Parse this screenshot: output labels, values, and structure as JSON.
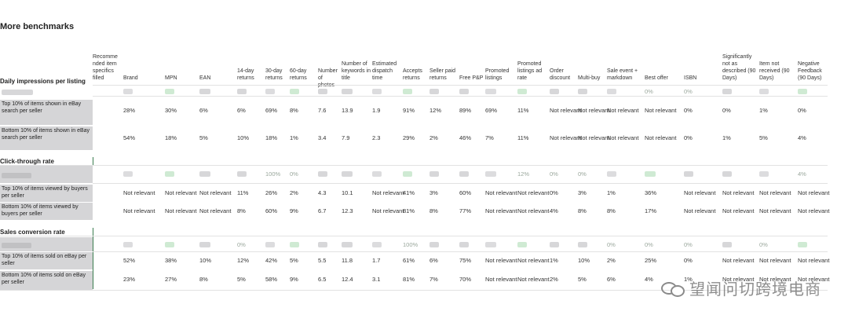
{
  "title": "More benchmarks",
  "columns": [
    "Recommended item specifics filled",
    "Brand",
    "MPN",
    "EAN",
    "14-day returns",
    "30-day returns",
    "60-day returns",
    "Number of photos",
    "Number of keywords in title",
    "Estimated dispatch time",
    "Accepts returns",
    "Seller paid returns",
    "Free P&P",
    "Promoted listings",
    "Promoted listings ad rate",
    "Order discount",
    "Multi-buy",
    "Sale event + markdown",
    "Best offer",
    "ISBN",
    "Significantly not as described (90 Days)",
    "Item not received (90 Days)",
    "Negative Feedback (90 Days)"
  ],
  "column_headers": {
    "c0": "Recomme nded item specifics filled",
    "c1": "Brand",
    "c2": "MPN",
    "c3": "EAN",
    "c4": "14-day returns",
    "c5": "30-day returns",
    "c6": "60-day returns",
    "c7": "Number of photos",
    "c8": "Number of keywords in title",
    "c9": "Estimated dispatch time",
    "c10": "Accepts returns",
    "c11": "Seller paid returns",
    "c12": "Free P&P",
    "c13": "Promoted listings",
    "c14": "Promoted listings ad rate",
    "c15": "Order discount",
    "c16": "Multi-buy",
    "c17": "Sale event + markdown",
    "c18": "Best offer",
    "c19": "ISBN",
    "c20": "Significantly not as described (90 Days)",
    "c21": "Item not received (90 Days)",
    "c22": "Negative Feedback (90 Days)"
  },
  "sections": {
    "impressions": {
      "title": "Daily impressions per listing",
      "blurred_row": {
        "c18": "0%",
        "c19": "0%"
      },
      "rows": [
        {
          "label": "Top 10% of items shown in eBay search per seller",
          "values": [
            "",
            "28%",
            "30%",
            "6%",
            "6%",
            "69%",
            "8%",
            "7.6",
            "13.9",
            "1.9",
            "91%",
            "12%",
            "89%",
            "69%",
            "11%",
            "Not relevant",
            "Not relevant",
            "Not relevant",
            "Not relevant",
            "0%",
            "0%",
            "1%",
            "0%"
          ]
        },
        {
          "label": "Bottom 10% of items shown in eBay search per seller",
          "values": [
            "",
            "54%",
            "18%",
            "5%",
            "10%",
            "18%",
            "1%",
            "3.4",
            "7.9",
            "2.3",
            "29%",
            "2%",
            "46%",
            "7%",
            "11%",
            "Not relevant",
            "Not relevant",
            "Not relevant",
            "Not relevant",
            "0%",
            "1%",
            "5%",
            "4%"
          ]
        }
      ]
    },
    "ctr": {
      "title": "Click-through rate",
      "blurred_row": {
        "c5": "100%",
        "c6": "0%",
        "c14": "12%",
        "c15": "0%",
        "c16": "0%",
        "c22": "4%"
      },
      "rows": [
        {
          "label": "Top 10% of items viewed by buyers per seller",
          "values": [
            "",
            "Not relevant",
            "Not relevant",
            "Not relevant",
            "11%",
            "26%",
            "2%",
            "4.3",
            "10.1",
            "Not relevant",
            "41%",
            "3%",
            "60%",
            "Not relevant",
            "Not relevant",
            "0%",
            "3%",
            "1%",
            "36%",
            "Not relevant",
            "Not relevant",
            "Not relevant",
            "Not relevant"
          ]
        },
        {
          "label": "Bottom 10% of items viewed by buyers per seller",
          "values": [
            "",
            "Not relevant",
            "Not relevant",
            "Not relevant",
            "8%",
            "60%",
            "9%",
            "6.7",
            "12.3",
            "Not relevant",
            "81%",
            "8%",
            "77%",
            "Not relevant",
            "Not relevant",
            "4%",
            "8%",
            "8%",
            "17%",
            "Not relevant",
            "Not relevant",
            "Not relevant",
            "Not relevant"
          ]
        }
      ]
    },
    "conversion": {
      "title": "Sales conversion rate",
      "blurred_row": {
        "c4": "0%",
        "c10": "100%",
        "c17": "0%",
        "c18": "0%",
        "c19": "0%",
        "c21": "0%"
      },
      "rows": [
        {
          "label": "Top 10% of items sold on eBay per seller",
          "values": [
            "",
            "52%",
            "38%",
            "10%",
            "12%",
            "42%",
            "5%",
            "5.5",
            "11.8",
            "1.7",
            "61%",
            "6%",
            "75%",
            "Not relevant",
            "Not relevant",
            "1%",
            "10%",
            "2%",
            "25%",
            "0%",
            "Not relevant",
            "Not relevant",
            "Not relevant"
          ]
        },
        {
          "label": "Bottom 10% of items sold on eBay per seller",
          "values": [
            "",
            "23%",
            "27%",
            "8%",
            "5%",
            "58%",
            "9%",
            "6.5",
            "12.4",
            "3.1",
            "81%",
            "7%",
            "70%",
            "Not relevant",
            "Not relevant",
            "2%",
            "5%",
            "6%",
            "4%",
            "1%",
            "Not relevant",
            "Not relevant",
            "Not relevant"
          ]
        }
      ]
    }
  },
  "watermark": "望闻问切跨境电商",
  "colors": {
    "section_bg": "#d5d5d7",
    "accent_line": "#3a7d4f",
    "blur_green": "#bfe3c4",
    "blur_red": "#f3b7bd",
    "blur_grey": "#c9c9cc"
  }
}
